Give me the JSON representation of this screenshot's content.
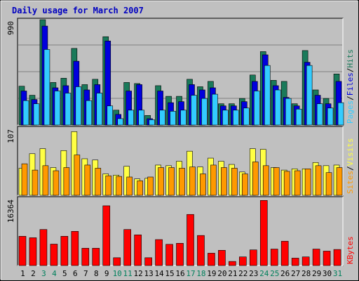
{
  "chart_data": {
    "type": "bar",
    "title": "Daily usage for March 2007",
    "categories": [
      "1",
      "2",
      "3",
      "4",
      "5",
      "6",
      "7",
      "8",
      "9",
      "10",
      "11",
      "12",
      "13",
      "14",
      "15",
      "16",
      "17",
      "18",
      "19",
      "20",
      "21",
      "22",
      "23",
      "24",
      "25",
      "26",
      "27",
      "28",
      "29",
      "30",
      "31"
    ],
    "weekend_days": [
      "3",
      "4",
      "10",
      "11",
      "17",
      "18",
      "24",
      "25",
      "31"
    ],
    "panels": [
      {
        "axis_max_label": "990",
        "ylim": [
          0,
          990
        ],
        "legend": [
          "Pages",
          "Files",
          "Hits"
        ],
        "series": [
          {
            "name": "Hits",
            "color": "#1a7a5a",
            "values": [
              365,
              280,
              990,
              400,
              440,
              720,
              380,
              430,
              830,
              140,
              400,
              390,
              90,
              370,
              270,
              270,
              430,
              360,
              410,
              200,
              200,
              250,
              470,
              690,
              420,
              410,
              200,
              700,
              330,
              250,
              480
            ]
          },
          {
            "name": "Files",
            "color": "#0000dd",
            "values": [
              320,
              240,
              930,
              350,
              370,
              600,
              330,
              380,
              790,
              100,
              320,
              380,
              60,
              320,
              210,
              220,
              380,
              330,
              350,
              180,
              180,
              220,
              410,
              660,
              370,
              260,
              180,
              590,
              280,
              200,
              410
            ]
          },
          {
            "name": "Pages",
            "color": "#33ccff",
            "values": [
              230,
              200,
              710,
              320,
              300,
              360,
              230,
              300,
              180,
              60,
              140,
              140,
              50,
              140,
              130,
              140,
              280,
              250,
              290,
              140,
              140,
              160,
              320,
              560,
              330,
              250,
              150,
              560,
              200,
              160,
              210
            ]
          }
        ]
      },
      {
        "axis_max_label": "107",
        "ylim": [
          0,
          107
        ],
        "legend": [
          "Sites",
          "Visits"
        ],
        "series": [
          {
            "name": "Visits",
            "color": "#ffff44",
            "values": [
              43,
              66,
              74,
              44,
              71,
              101,
              58,
              56,
              34,
              32,
              46,
              26,
              27,
              48,
              47,
              54,
              70,
              45,
              59,
              54,
              49,
              37,
              74,
              73,
              44,
              40,
              42,
              42,
              52,
              47,
              48
            ]
          },
          {
            "name": "Sites",
            "color": "#ff9900",
            "values": [
              50,
              40,
              47,
              39,
              44,
              64,
              48,
              43,
              31,
              30,
              29,
              23,
              29,
              44,
              44,
              43,
              45,
              34,
              48,
              44,
              43,
              34,
              53,
              47,
              44,
              38,
              39,
              42,
              47,
              36,
              44
            ]
          }
        ]
      },
      {
        "axis_max_label": "16364",
        "ylim": [
          0,
          16364
        ],
        "legend": [
          "KBytes"
        ],
        "series": [
          {
            "name": "KBytes",
            "color": "#ff0000",
            "values": [
              7100,
              6750,
              8750,
              5200,
              7100,
              8300,
              4200,
              4200,
              14500,
              1900,
              8750,
              7450,
              1900,
              6300,
              5150,
              5400,
              12400,
              7300,
              3000,
              3700,
              1000,
              2100,
              3800,
              15800,
              4000,
              5900,
              1800,
              2100,
              4000,
              3500,
              3900
            ]
          }
        ]
      }
    ]
  }
}
